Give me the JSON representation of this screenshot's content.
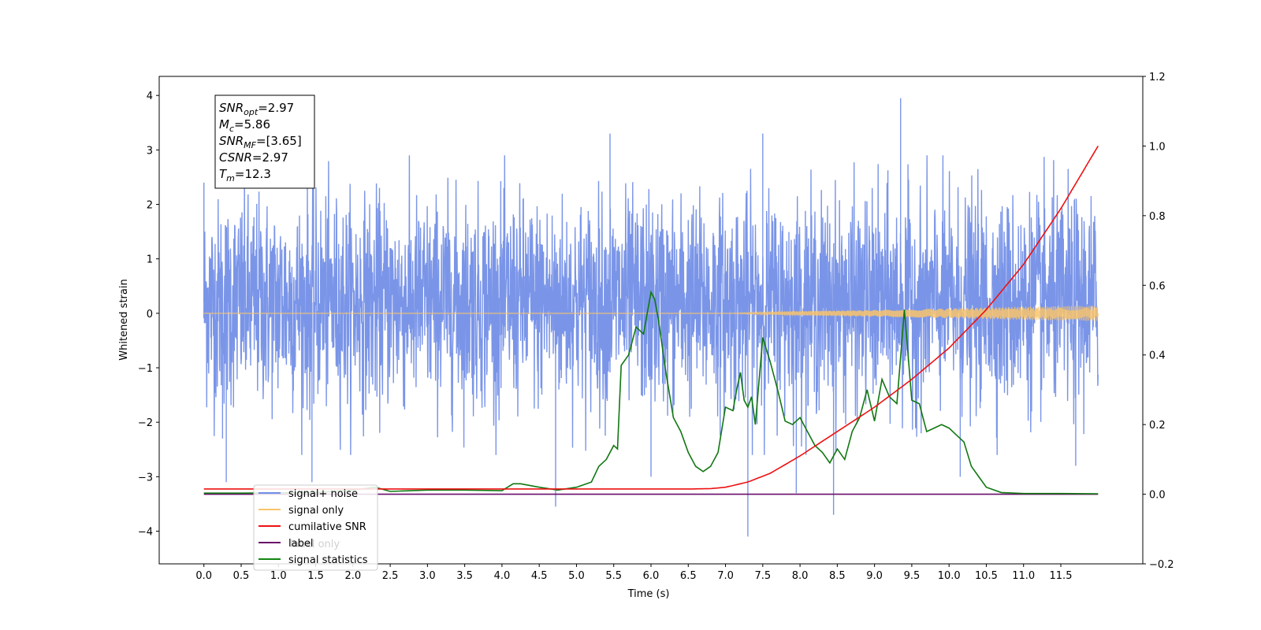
{
  "chart_data": {
    "type": "line",
    "xlabel": "Time (s)",
    "ylabel": "Whitened strain",
    "xlim": [
      -0.6,
      12.6
    ],
    "ylim": [
      -4.6,
      4.35
    ],
    "ylim_right": [
      -0.2,
      1.2
    ],
    "x_ticks": [
      "0.0",
      "0.5",
      "1.0",
      "1.5",
      "2.0",
      "2.5",
      "3.0",
      "3.5",
      "4.0",
      "4.5",
      "5.0",
      "5.5",
      "6.0",
      "6.5",
      "7.0",
      "7.5",
      "8.0",
      "8.5",
      "9.0",
      "9.5",
      "10.0",
      "10.5",
      "11.0",
      "11.5"
    ],
    "y_ticks_left": [
      "4",
      "3",
      "2",
      "1",
      "0",
      "−1",
      "−2",
      "−3",
      "−4"
    ],
    "y_ticks_right": [
      "1.2",
      "1.0",
      "0.8",
      "0.6",
      "0.4",
      "0.2",
      "0.0",
      "−0.2"
    ],
    "grid": false,
    "annotation": {
      "lines": [
        {
          "main": "SNR",
          "sub": "opt",
          "value": "=2.97"
        },
        {
          "main": "M",
          "sub": "c",
          "value": "=5.86"
        },
        {
          "main": "SNR",
          "sub": "MF",
          "value": "=[3.65]"
        },
        {
          "main": "CSNR",
          "sub": "",
          "value": "=2.97"
        },
        {
          "main": "T",
          "sub": "m",
          "value": "=12.3"
        }
      ]
    },
    "legend": {
      "location": "lower-left",
      "entries": [
        {
          "label": "signal+ noise",
          "color": "#6f8fe6"
        },
        {
          "label": "signal only",
          "color": "#f9c46b"
        },
        {
          "label": "cumilative SNR",
          "color": "#ee1111"
        },
        {
          "label": "label",
          "color": "#6a0d6a"
        },
        {
          "label": "signal statistics",
          "color": "#118811"
        }
      ],
      "hidden_text": "label only"
    },
    "series": [
      {
        "name": "signal+ noise",
        "axis": "left",
        "color": "#7a95e8",
        "x_range": [
          0.0,
          12.0
        ],
        "typical_band": [
          -1.5,
          1.9
        ],
        "spikes": [
          [
            0.0,
            2.4
          ],
          [
            0.25,
            -2.3
          ],
          [
            0.3,
            -3.1
          ],
          [
            1.45,
            -3.1
          ],
          [
            4.72,
            -3.55
          ],
          [
            5.45,
            3.3
          ],
          [
            6.0,
            -3.0
          ],
          [
            7.3,
            -4.1
          ],
          [
            7.5,
            3.3
          ],
          [
            7.95,
            -3.3
          ],
          [
            8.45,
            -3.7
          ],
          [
            9.35,
            3.95
          ],
          [
            10.15,
            -3.0
          ],
          [
            11.7,
            -2.8
          ]
        ]
      },
      {
        "name": "signal only",
        "axis": "left",
        "color": "#f9c46b",
        "envelope_x": [
          0,
          7.0,
          8.0,
          9.0,
          10.0,
          11.0,
          12.0
        ],
        "envelope_amp": [
          0.0,
          0.0,
          0.04,
          0.06,
          0.09,
          0.12,
          0.14
        ]
      },
      {
        "name": "cumilative SNR",
        "axis": "right",
        "color": "#ee1111",
        "x": [
          0,
          6.5,
          6.8,
          7.0,
          7.3,
          7.6,
          8.0,
          8.5,
          9.0,
          9.5,
          10.0,
          10.5,
          11.0,
          11.5,
          12.0
        ],
        "y": [
          0.015,
          0.015,
          0.016,
          0.02,
          0.035,
          0.06,
          0.11,
          0.18,
          0.25,
          0.33,
          0.42,
          0.53,
          0.66,
          0.82,
          1.0
        ]
      },
      {
        "name": "label",
        "axis": "right",
        "color": "#6a0d6a",
        "x": [
          0,
          12.0
        ],
        "y": [
          0.0,
          0.0
        ]
      },
      {
        "name": "signal statistics",
        "axis": "right",
        "color": "#117711",
        "x": [
          0.0,
          0.5,
          1.0,
          1.5,
          2.0,
          2.3,
          2.5,
          3.0,
          3.5,
          4.0,
          4.15,
          4.25,
          4.5,
          4.75,
          5.0,
          5.2,
          5.3,
          5.4,
          5.5,
          5.55,
          5.6,
          5.7,
          5.8,
          5.9,
          6.0,
          6.05,
          6.1,
          6.2,
          6.3,
          6.4,
          6.5,
          6.6,
          6.7,
          6.8,
          6.9,
          7.0,
          7.1,
          7.15,
          7.2,
          7.25,
          7.3,
          7.35,
          7.4,
          7.5,
          7.6,
          7.7,
          7.8,
          7.9,
          8.0,
          8.1,
          8.2,
          8.3,
          8.4,
          8.5,
          8.6,
          8.7,
          8.8,
          8.9,
          9.0,
          9.1,
          9.2,
          9.3,
          9.4,
          9.5,
          9.6,
          9.7,
          9.8,
          9.9,
          10.0,
          10.1,
          10.2,
          10.3,
          10.4,
          10.5,
          10.7,
          11.0,
          11.5,
          12.0
        ],
        "y": [
          0.003,
          0.003,
          0.004,
          0.005,
          0.012,
          0.02,
          0.008,
          0.012,
          0.012,
          0.01,
          0.03,
          0.03,
          0.02,
          0.012,
          0.02,
          0.035,
          0.08,
          0.1,
          0.14,
          0.13,
          0.37,
          0.4,
          0.48,
          0.46,
          0.58,
          0.56,
          0.5,
          0.35,
          0.22,
          0.18,
          0.12,
          0.08,
          0.065,
          0.08,
          0.12,
          0.25,
          0.24,
          0.3,
          0.35,
          0.27,
          0.25,
          0.28,
          0.2,
          0.45,
          0.38,
          0.3,
          0.21,
          0.2,
          0.22,
          0.18,
          0.14,
          0.12,
          0.09,
          0.13,
          0.1,
          0.18,
          0.22,
          0.3,
          0.21,
          0.33,
          0.28,
          0.26,
          0.53,
          0.27,
          0.26,
          0.18,
          0.19,
          0.2,
          0.19,
          0.17,
          0.15,
          0.08,
          0.05,
          0.02,
          0.005,
          0.002,
          0.002,
          0.001
        ]
      }
    ]
  }
}
